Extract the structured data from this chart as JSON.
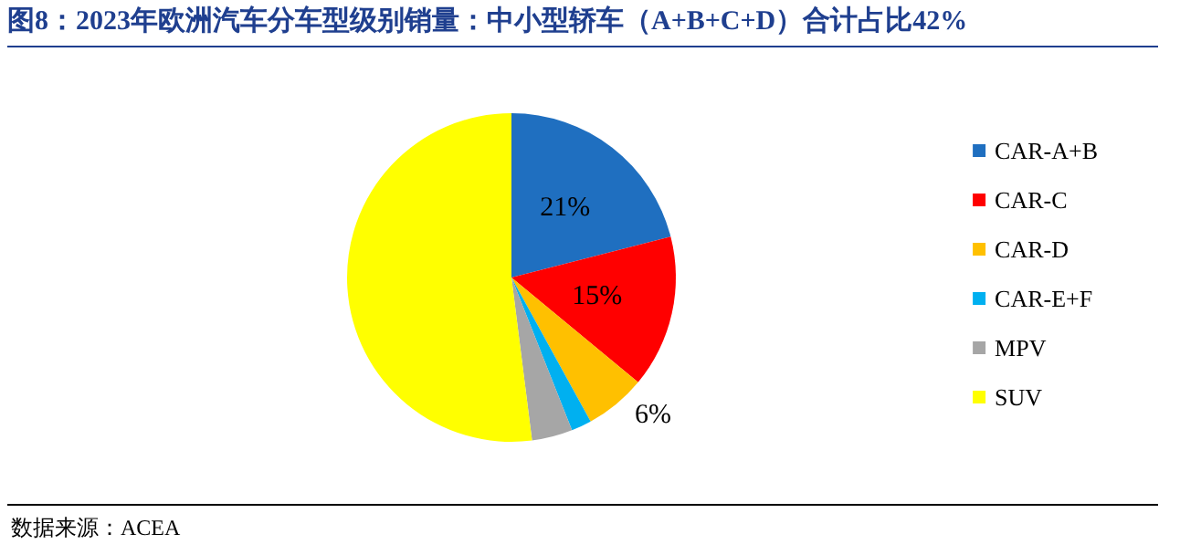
{
  "chart_data": {
    "type": "pie",
    "title": "图8：2023年欧洲汽车分车型级别销量：中小型轿车（A+B+C+D）合计占比42%",
    "categories": [
      "CAR-A+B",
      "CAR-C",
      "CAR-D",
      "CAR-E+F",
      "MPV",
      "SUV"
    ],
    "values": [
      21,
      15,
      6,
      2,
      4,
      52
    ],
    "colors": [
      "#1f6fc0",
      "#ff0000",
      "#ffc000",
      "#00b0f0",
      "#a6a6a6",
      "#ffff00"
    ],
    "value_labels": [
      "21%",
      "15%",
      "6%",
      null,
      null,
      null
    ],
    "legend": "right",
    "annotations": [
      "数据来源：ACEA"
    ]
  }
}
